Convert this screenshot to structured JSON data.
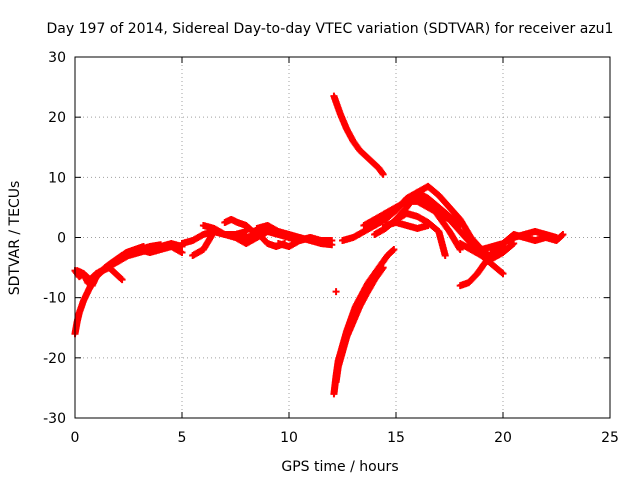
{
  "chart_data": {
    "type": "scatter",
    "title": "Day 197 of 2014, Sidereal Day-to-day VTEC variation (SDTVAR) for receiver azu1",
    "xlabel": "GPS time / hours",
    "ylabel": "SDTVAR / TECUs",
    "xlim": [
      0,
      25
    ],
    "ylim": [
      -30,
      30
    ],
    "xticks": [
      0,
      5,
      10,
      15,
      20,
      25
    ],
    "yticks": [
      -30,
      -20,
      -10,
      0,
      10,
      20,
      30
    ],
    "grid": true,
    "marker": "plus",
    "color": "#ff0000",
    "series": [
      {
        "name": "arc-early-1",
        "x": [
          0.0,
          0.1,
          0.2,
          0.4,
          0.6,
          0.8,
          1.0,
          1.3,
          1.6,
          2.0,
          2.4,
          2.8,
          3.2
        ],
        "y": [
          -16,
          -14,
          -12.5,
          -10.5,
          -9,
          -7.5,
          -6.5,
          -5.5,
          -4.5,
          -3.5,
          -2.5,
          -2,
          -1.5
        ]
      },
      {
        "name": "arc-early-2",
        "x": [
          0.0,
          0.2,
          0.4,
          0.6,
          0.8,
          1.0,
          1.4,
          1.8,
          2.2,
          2.6,
          3.0,
          3.5,
          4.0
        ],
        "y": [
          -5.5,
          -6.5,
          -6,
          -7.5,
          -8,
          -6.5,
          -5,
          -4,
          -3,
          -2.5,
          -2,
          -1.5,
          -1.2
        ]
      },
      {
        "name": "arc-early-3",
        "x": [
          0.1,
          0.4,
          0.7,
          1.0,
          1.3,
          1.6,
          1.9,
          2.2
        ],
        "y": [
          -5.5,
          -6,
          -7,
          -6,
          -5.5,
          -5,
          -6,
          -7
        ]
      },
      {
        "name": "arc-early-4",
        "x": [
          1.0,
          1.5,
          2.0,
          2.5,
          3.0,
          3.5,
          4.0,
          4.5,
          5.0
        ],
        "y": [
          -6,
          -5,
          -4,
          -3,
          -2.5,
          -2,
          -1.5,
          -1,
          -1.5
        ]
      },
      {
        "name": "arc-early-5",
        "x": [
          3.0,
          3.5,
          4.0,
          4.5,
          5.0
        ],
        "y": [
          -2,
          -2.5,
          -2,
          -1.5,
          -2.5
        ]
      },
      {
        "name": "arc-morning-1",
        "x": [
          5.0,
          5.5,
          6.0,
          6.5,
          7.0,
          7.5,
          8.0,
          8.5,
          9.0,
          9.5,
          10.0,
          10.5,
          11.0,
          11.5,
          12.0
        ],
        "y": [
          -1,
          -0.5,
          0.5,
          1,
          0.5,
          0.5,
          0,
          0.5,
          1,
          0.5,
          0,
          -0.5,
          0,
          -0.5,
          -0.5
        ]
      },
      {
        "name": "arc-morning-2",
        "x": [
          5.5,
          6.0,
          6.5,
          7.0,
          7.5,
          8.0,
          8.5,
          9.0
        ],
        "y": [
          -3,
          -2,
          1,
          0.5,
          0,
          -1,
          0,
          1
        ]
      },
      {
        "name": "arc-morning-3",
        "x": [
          6.0,
          6.5,
          7.0,
          7.5,
          8.0
        ],
        "y": [
          2,
          1.5,
          0.5,
          0.5,
          1
        ]
      },
      {
        "name": "arc-morning-4",
        "x": [
          7.0,
          7.3,
          7.6,
          8.0,
          8.3,
          8.6,
          9.0,
          9.4,
          9.8
        ],
        "y": [
          2.5,
          3,
          2.5,
          2,
          1,
          0.5,
          -1,
          -1.5,
          -1
        ]
      },
      {
        "name": "arc-morning-5",
        "x": [
          8.5,
          9.0,
          9.5,
          10.0,
          10.5,
          11.0,
          11.5,
          12.0
        ],
        "y": [
          1.5,
          2,
          1,
          0.5,
          0,
          -0.5,
          -1,
          -1.2
        ]
      },
      {
        "name": "arc-morning-6",
        "x": [
          9.5,
          10.0,
          10.5,
          11.0,
          11.5
        ],
        "y": [
          -1,
          -1.5,
          -0.5,
          0,
          -1
        ]
      },
      {
        "name": "arc-high-descending",
        "x": [
          12.1,
          12.4,
          12.7,
          13.0,
          13.3,
          13.6,
          13.9,
          14.2,
          14.4
        ],
        "y": [
          23.5,
          20.5,
          18,
          16,
          14.5,
          13.5,
          12.5,
          11.5,
          10.5
        ]
      },
      {
        "name": "arc-low-rising-1",
        "x": [
          12.1,
          12.2,
          12.3,
          12.5,
          12.7,
          12.9,
          13.1,
          13.4,
          13.7,
          14.0,
          14.3,
          14.6,
          14.9
        ],
        "y": [
          -26,
          -23,
          -20.5,
          -18,
          -15.5,
          -13.5,
          -11.5,
          -9.5,
          -7.5,
          -6,
          -4.5,
          -3,
          -2
        ]
      },
      {
        "name": "arc-low-rising-2",
        "x": [
          12.2,
          12.3,
          12.5,
          12.7,
          13.0,
          13.3,
          13.6,
          14.0,
          14.4
        ],
        "y": [
          -24,
          -21.5,
          -19,
          -16.5,
          -14,
          -11.5,
          -9.5,
          -7,
          -5
        ]
      },
      {
        "name": "point-isolated",
        "x": [
          12.2
        ],
        "y": [
          -9
        ]
      },
      {
        "name": "arc-midday-1",
        "x": [
          12.5,
          13.0,
          13.5,
          14.0,
          14.5,
          15.0,
          15.5,
          16.0,
          16.5,
          17.0,
          17.5,
          18.0
        ],
        "y": [
          -0.5,
          0,
          1,
          2,
          3,
          4.5,
          6.5,
          7.5,
          6.5,
          5,
          3.5,
          2
        ]
      },
      {
        "name": "arc-midday-2",
        "x": [
          13.5,
          14.0,
          14.5,
          15.0,
          15.5,
          16.0,
          16.5,
          17.0,
          17.5,
          18.0
        ],
        "y": [
          2,
          3,
          4,
          5,
          6,
          7,
          6,
          3.5,
          1,
          -2
        ]
      },
      {
        "name": "arc-midday-3",
        "x": [
          14.0,
          14.5,
          15.0,
          15.5,
          16.0,
          16.5,
          17.0,
          17.3
        ],
        "y": [
          0.5,
          1.5,
          3,
          4,
          3.5,
          2.5,
          1,
          -3
        ]
      },
      {
        "name": "arc-midday-4",
        "x": [
          15.0,
          15.5,
          16.0,
          16.5,
          17.0,
          17.5,
          18.0,
          18.5,
          19.0,
          19.5
        ],
        "y": [
          3,
          5,
          7.5,
          8.5,
          7,
          5,
          3,
          0,
          -2,
          -3.5
        ]
      },
      {
        "name": "arc-midday-5",
        "x": [
          15.5,
          16.0,
          16.5,
          17.0,
          17.5,
          18.0,
          18.5,
          19.0,
          19.5,
          20.0
        ],
        "y": [
          6,
          6,
          5,
          4,
          3,
          1,
          -1,
          -3,
          -4.5,
          -6
        ]
      },
      {
        "name": "arc-midday-6",
        "x": [
          14.5,
          15.0,
          15.5,
          16.0,
          16.5
        ],
        "y": [
          2,
          2.5,
          2,
          1.5,
          2
        ]
      },
      {
        "name": "arc-afternoon-1",
        "x": [
          18.0,
          18.4,
          18.8,
          19.2,
          19.6,
          20.0
        ],
        "y": [
          -8,
          -7.5,
          -6,
          -4,
          -2.5,
          -1.5
        ]
      },
      {
        "name": "arc-afternoon-2",
        "x": [
          18.5,
          19.0,
          19.5,
          20.0,
          20.5,
          21.0,
          21.5,
          22.0,
          22.5
        ],
        "y": [
          -1.5,
          -2,
          -1.5,
          -1,
          0,
          0.5,
          1,
          0.5,
          0
        ]
      },
      {
        "name": "arc-afternoon-3",
        "x": [
          19.5,
          20.0,
          20.5,
          21.0,
          21.5,
          22.0,
          22.5,
          22.8
        ],
        "y": [
          -2.5,
          -1,
          0.5,
          0,
          -0.5,
          0,
          -0.5,
          0.5
        ]
      },
      {
        "name": "arc-afternoon-4",
        "x": [
          18.0,
          18.5,
          19.0,
          19.5,
          20.0,
          20.5
        ],
        "y": [
          -1,
          -2,
          -3,
          -3.5,
          -2.5,
          -1
        ]
      }
    ]
  }
}
